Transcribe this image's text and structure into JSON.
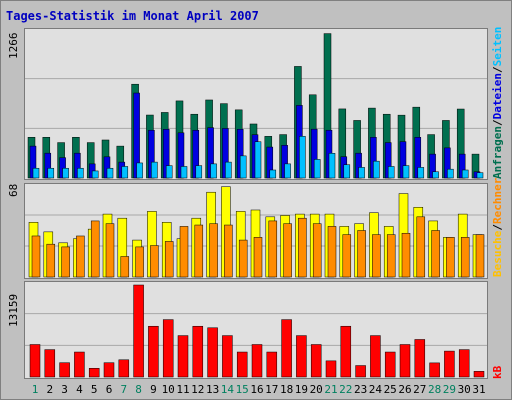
{
  "title": "Tages-Statistik im Monat April 2007",
  "colors": {
    "hits": "#006F4F",
    "files": "#0000E0",
    "pages": "#00C0FF",
    "visits": "#FFFF00",
    "sites": "#FF8C00",
    "kbytes": "#FF0000",
    "weekend_label": "#00805F",
    "weekday_label": "#000000",
    "title": "#0000C0"
  },
  "legend": {
    "top": [
      {
        "text": "Anfragen",
        "color": "#006F4F"
      },
      {
        "text": "/",
        "color": "#000000"
      },
      {
        "text": "Dateien",
        "color": "#0000E0"
      },
      {
        "text": "/",
        "color": "#000000"
      },
      {
        "text": "Seiten",
        "color": "#00C0FF"
      }
    ],
    "middle": [
      {
        "text": "Besuche",
        "color": "#FFC000"
      },
      {
        "text": "/",
        "color": "#000000"
      },
      {
        "text": "Rechner",
        "color": "#FF8C00"
      }
    ],
    "bottom": [
      {
        "text": "kB",
        "color": "#FF0000"
      }
    ]
  },
  "chart_data": [
    {
      "type": "bar",
      "name": "hits-files-pages",
      "ylabel": "1266",
      "ylim": [
        0,
        1266
      ],
      "x": [
        1,
        2,
        3,
        4,
        5,
        6,
        7,
        8,
        9,
        10,
        11,
        12,
        13,
        14,
        15,
        16,
        17,
        18,
        19,
        20,
        21,
        22,
        23,
        24,
        25,
        26,
        27,
        28,
        29,
        30,
        31
      ],
      "series": [
        {
          "name": "Anfragen",
          "values": [
            346,
            346,
            301,
            346,
            301,
            323,
            271,
            797,
            535,
            557,
            655,
            542,
            663,
            632,
            579,
            459,
            354,
            369,
            948,
            707,
            1227,
            587,
            489,
            594,
            542,
            534,
            602,
            369,
            489,
            586,
            203
          ]
        },
        {
          "name": "Dateien",
          "values": [
            271,
            211,
            173,
            211,
            120,
            180,
            135,
            722,
            406,
            414,
            384,
            406,
            428,
            421,
            414,
            368,
            263,
            278,
            617,
            415,
            406,
            181,
            211,
            346,
            301,
            309,
            346,
            203,
            256,
            203,
            53
          ]
        },
        {
          "name": "Seiten",
          "values": [
            83,
            83,
            83,
            83,
            60,
            83,
            98,
            128,
            135,
            105,
            98,
            105,
            120,
            135,
            188,
            308,
            68,
            120,
            354,
            158,
            210,
            113,
            90,
            143,
            98,
            105,
            90,
            53,
            75,
            68,
            45
          ]
        }
      ]
    },
    {
      "type": "bar",
      "name": "visits-sites",
      "ylabel": "68",
      "ylim": [
        0,
        68
      ],
      "x": [
        1,
        2,
        3,
        4,
        5,
        6,
        7,
        8,
        9,
        10,
        11,
        12,
        13,
        14,
        15,
        16,
        17,
        18,
        19,
        20,
        21,
        22,
        23,
        24,
        25,
        26,
        27,
        28,
        29,
        30,
        31
      ],
      "series": [
        {
          "name": "Besuche",
          "values": [
            40,
            33,
            25,
            28,
            35,
            46,
            43,
            27,
            48,
            40,
            28,
            43,
            62,
            66,
            48,
            49,
            44,
            45,
            46,
            46,
            46,
            37,
            39,
            47,
            37,
            61,
            51,
            41,
            29,
            46,
            31
          ]
        },
        {
          "name": "Rechner",
          "values": [
            30,
            24,
            22,
            30,
            41,
            39,
            15,
            22,
            23,
            26,
            37,
            38,
            39,
            38,
            27,
            29,
            41,
            39,
            43,
            39,
            37,
            31,
            34,
            31,
            31,
            32,
            44,
            34,
            29,
            29,
            31
          ]
        }
      ]
    },
    {
      "type": "bar",
      "name": "kbytes",
      "ylabel": "13159",
      "ylim": [
        0,
        13159
      ],
      "x": [
        1,
        2,
        3,
        4,
        5,
        6,
        7,
        8,
        9,
        10,
        11,
        12,
        13,
        14,
        15,
        16,
        17,
        18,
        19,
        20,
        21,
        22,
        23,
        24,
        25,
        26,
        27,
        28,
        29,
        30,
        31
      ],
      "series": [
        {
          "name": "kB",
          "values": [
            4647,
            3919,
            2045,
            3572,
            1249,
            2045,
            2463,
            13159,
            7261,
            8210,
            5924,
            7261,
            7041,
            5924,
            3572,
            4647,
            3572,
            8210,
            5924,
            4647,
            2310,
            7263,
            1640,
            5924,
            3572,
            4647,
            5367,
            2019,
            3705,
            3919,
            812
          ]
        }
      ]
    }
  ],
  "x_labels": [
    {
      "t": "1",
      "weekend": true
    },
    {
      "t": "2",
      "weekend": false
    },
    {
      "t": "3",
      "weekend": false
    },
    {
      "t": "4",
      "weekend": false
    },
    {
      "t": "5",
      "weekend": false
    },
    {
      "t": "6",
      "weekend": false
    },
    {
      "t": "7",
      "weekend": true
    },
    {
      "t": "8",
      "weekend": true
    },
    {
      "t": "9",
      "weekend": false
    },
    {
      "t": "10",
      "weekend": false
    },
    {
      "t": "11",
      "weekend": false
    },
    {
      "t": "12",
      "weekend": false
    },
    {
      "t": "13",
      "weekend": false
    },
    {
      "t": "14",
      "weekend": true
    },
    {
      "t": "15",
      "weekend": true
    },
    {
      "t": "16",
      "weekend": false
    },
    {
      "t": "17",
      "weekend": false
    },
    {
      "t": "18",
      "weekend": false
    },
    {
      "t": "19",
      "weekend": false
    },
    {
      "t": "20",
      "weekend": false
    },
    {
      "t": "21",
      "weekend": true
    },
    {
      "t": "22",
      "weekend": true
    },
    {
      "t": "23",
      "weekend": false
    },
    {
      "t": "24",
      "weekend": false
    },
    {
      "t": "25",
      "weekend": false
    },
    {
      "t": "26",
      "weekend": false
    },
    {
      "t": "27",
      "weekend": false
    },
    {
      "t": "28",
      "weekend": true
    },
    {
      "t": "29",
      "weekend": true
    },
    {
      "t": "30",
      "weekend": false
    },
    {
      "t": "31",
      "weekend": false
    }
  ]
}
